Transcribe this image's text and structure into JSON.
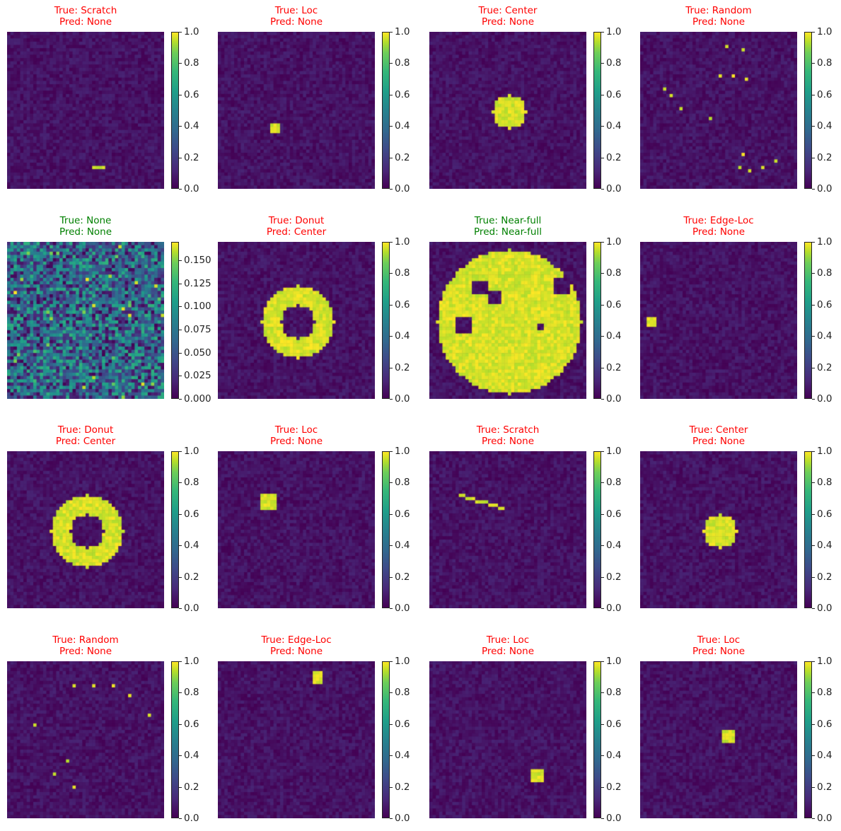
{
  "chart_data": [
    {
      "type": "heatmap",
      "true_label": "True: Scratch",
      "pred_label": "Pred: None",
      "correct": false,
      "colorbar_range": [
        0,
        1.0
      ],
      "ticks": [
        "0.0",
        "0.2",
        "0.4",
        "0.6",
        "0.8",
        "1.0"
      ],
      "pattern": "scratch"
    },
    {
      "type": "heatmap",
      "true_label": "True: Loc",
      "pred_label": "Pred: None",
      "correct": false,
      "colorbar_range": [
        0,
        1.0
      ],
      "ticks": [
        "0.0",
        "0.2",
        "0.4",
        "0.6",
        "0.8",
        "1.0"
      ],
      "pattern": "loc"
    },
    {
      "type": "heatmap",
      "true_label": "True: Center",
      "pred_label": "Pred: None",
      "correct": false,
      "colorbar_range": [
        0,
        1.0
      ],
      "ticks": [
        "0.0",
        "0.2",
        "0.4",
        "0.6",
        "0.8",
        "1.0"
      ],
      "pattern": "center"
    },
    {
      "type": "heatmap",
      "true_label": "True: Random",
      "pred_label": "Pred: None",
      "correct": false,
      "colorbar_range": [
        0,
        1.0
      ],
      "ticks": [
        "0.0",
        "0.2",
        "0.4",
        "0.6",
        "0.8",
        "1.0"
      ],
      "pattern": "random"
    },
    {
      "type": "heatmap",
      "true_label": "True: None",
      "pred_label": "Pred: None",
      "correct": true,
      "colorbar_range": [
        0,
        0.17
      ],
      "ticks": [
        "0.000",
        "0.025",
        "0.050",
        "0.075",
        "0.100",
        "0.125",
        "0.150"
      ],
      "pattern": "none"
    },
    {
      "type": "heatmap",
      "true_label": "True: Donut",
      "pred_label": "Pred: Center",
      "correct": false,
      "colorbar_range": [
        0,
        1.0
      ],
      "ticks": [
        "0.0",
        "0.2",
        "0.4",
        "0.6",
        "0.8",
        "1.0"
      ],
      "pattern": "donut"
    },
    {
      "type": "heatmap",
      "true_label": "True: Near-full",
      "pred_label": "Pred: Near-full",
      "correct": true,
      "colorbar_range": [
        0,
        1.0
      ],
      "ticks": [
        "0.0",
        "0.2",
        "0.4",
        "0.6",
        "0.8",
        "1.0"
      ],
      "pattern": "nearfull"
    },
    {
      "type": "heatmap",
      "true_label": "True: Edge-Loc",
      "pred_label": "Pred: None",
      "correct": false,
      "colorbar_range": [
        0,
        1.0
      ],
      "ticks": [
        "0.0",
        "0.2",
        "0.4",
        "0.6",
        "0.8",
        "1.0"
      ],
      "pattern": "edgeloc"
    },
    {
      "type": "heatmap",
      "true_label": "True: Donut",
      "pred_label": "Pred: Center",
      "correct": false,
      "colorbar_range": [
        0,
        1.0
      ],
      "ticks": [
        "0.0",
        "0.2",
        "0.4",
        "0.6",
        "0.8",
        "1.0"
      ],
      "pattern": "donut2"
    },
    {
      "type": "heatmap",
      "true_label": "True: Loc",
      "pred_label": "Pred: None",
      "correct": false,
      "colorbar_range": [
        0,
        1.0
      ],
      "ticks": [
        "0.0",
        "0.2",
        "0.4",
        "0.6",
        "0.8",
        "1.0"
      ],
      "pattern": "loc2"
    },
    {
      "type": "heatmap",
      "true_label": "True: Scratch",
      "pred_label": "Pred: None",
      "correct": false,
      "colorbar_range": [
        0,
        1.0
      ],
      "ticks": [
        "0.0",
        "0.2",
        "0.4",
        "0.6",
        "0.8",
        "1.0"
      ],
      "pattern": "scratch2"
    },
    {
      "type": "heatmap",
      "true_label": "True: Center",
      "pred_label": "Pred: None",
      "correct": false,
      "colorbar_range": [
        0,
        1.0
      ],
      "ticks": [
        "0.0",
        "0.2",
        "0.4",
        "0.6",
        "0.8",
        "1.0"
      ],
      "pattern": "center2"
    },
    {
      "type": "heatmap",
      "true_label": "True: Random",
      "pred_label": "Pred: None",
      "correct": false,
      "colorbar_range": [
        0,
        1.0
      ],
      "ticks": [
        "0.0",
        "0.2",
        "0.4",
        "0.6",
        "0.8",
        "1.0"
      ],
      "pattern": "random2"
    },
    {
      "type": "heatmap",
      "true_label": "True: Edge-Loc",
      "pred_label": "Pred: None",
      "correct": false,
      "colorbar_range": [
        0,
        1.0
      ],
      "ticks": [
        "0.0",
        "0.2",
        "0.4",
        "0.6",
        "0.8",
        "1.0"
      ],
      "pattern": "edgeloc2"
    },
    {
      "type": "heatmap",
      "true_label": "True: Loc",
      "pred_label": "Pred: None",
      "correct": false,
      "colorbar_range": [
        0,
        1.0
      ],
      "ticks": [
        "0.0",
        "0.2",
        "0.4",
        "0.6",
        "0.8",
        "1.0"
      ],
      "pattern": "loc3"
    },
    {
      "type": "heatmap",
      "true_label": "True: Loc",
      "pred_label": "Pred: None",
      "correct": false,
      "colorbar_range": [
        0,
        1.0
      ],
      "ticks": [
        "0.0",
        "0.2",
        "0.4",
        "0.6",
        "0.8",
        "1.0"
      ],
      "pattern": "loc4"
    }
  ],
  "colors": {
    "correct": "#008000",
    "incorrect": "#ff0000",
    "low": "#440154",
    "high": "#fde725"
  }
}
